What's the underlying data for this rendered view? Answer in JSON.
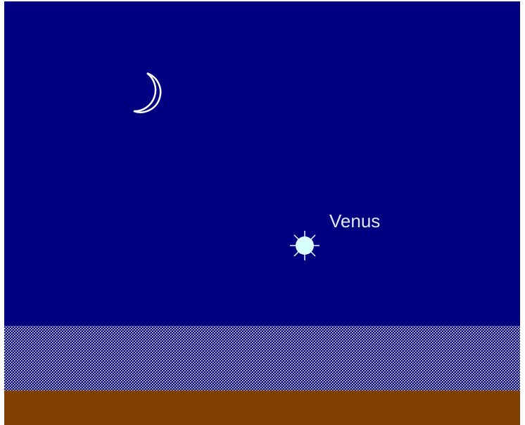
{
  "labels": {
    "planet": "Venus"
  }
}
